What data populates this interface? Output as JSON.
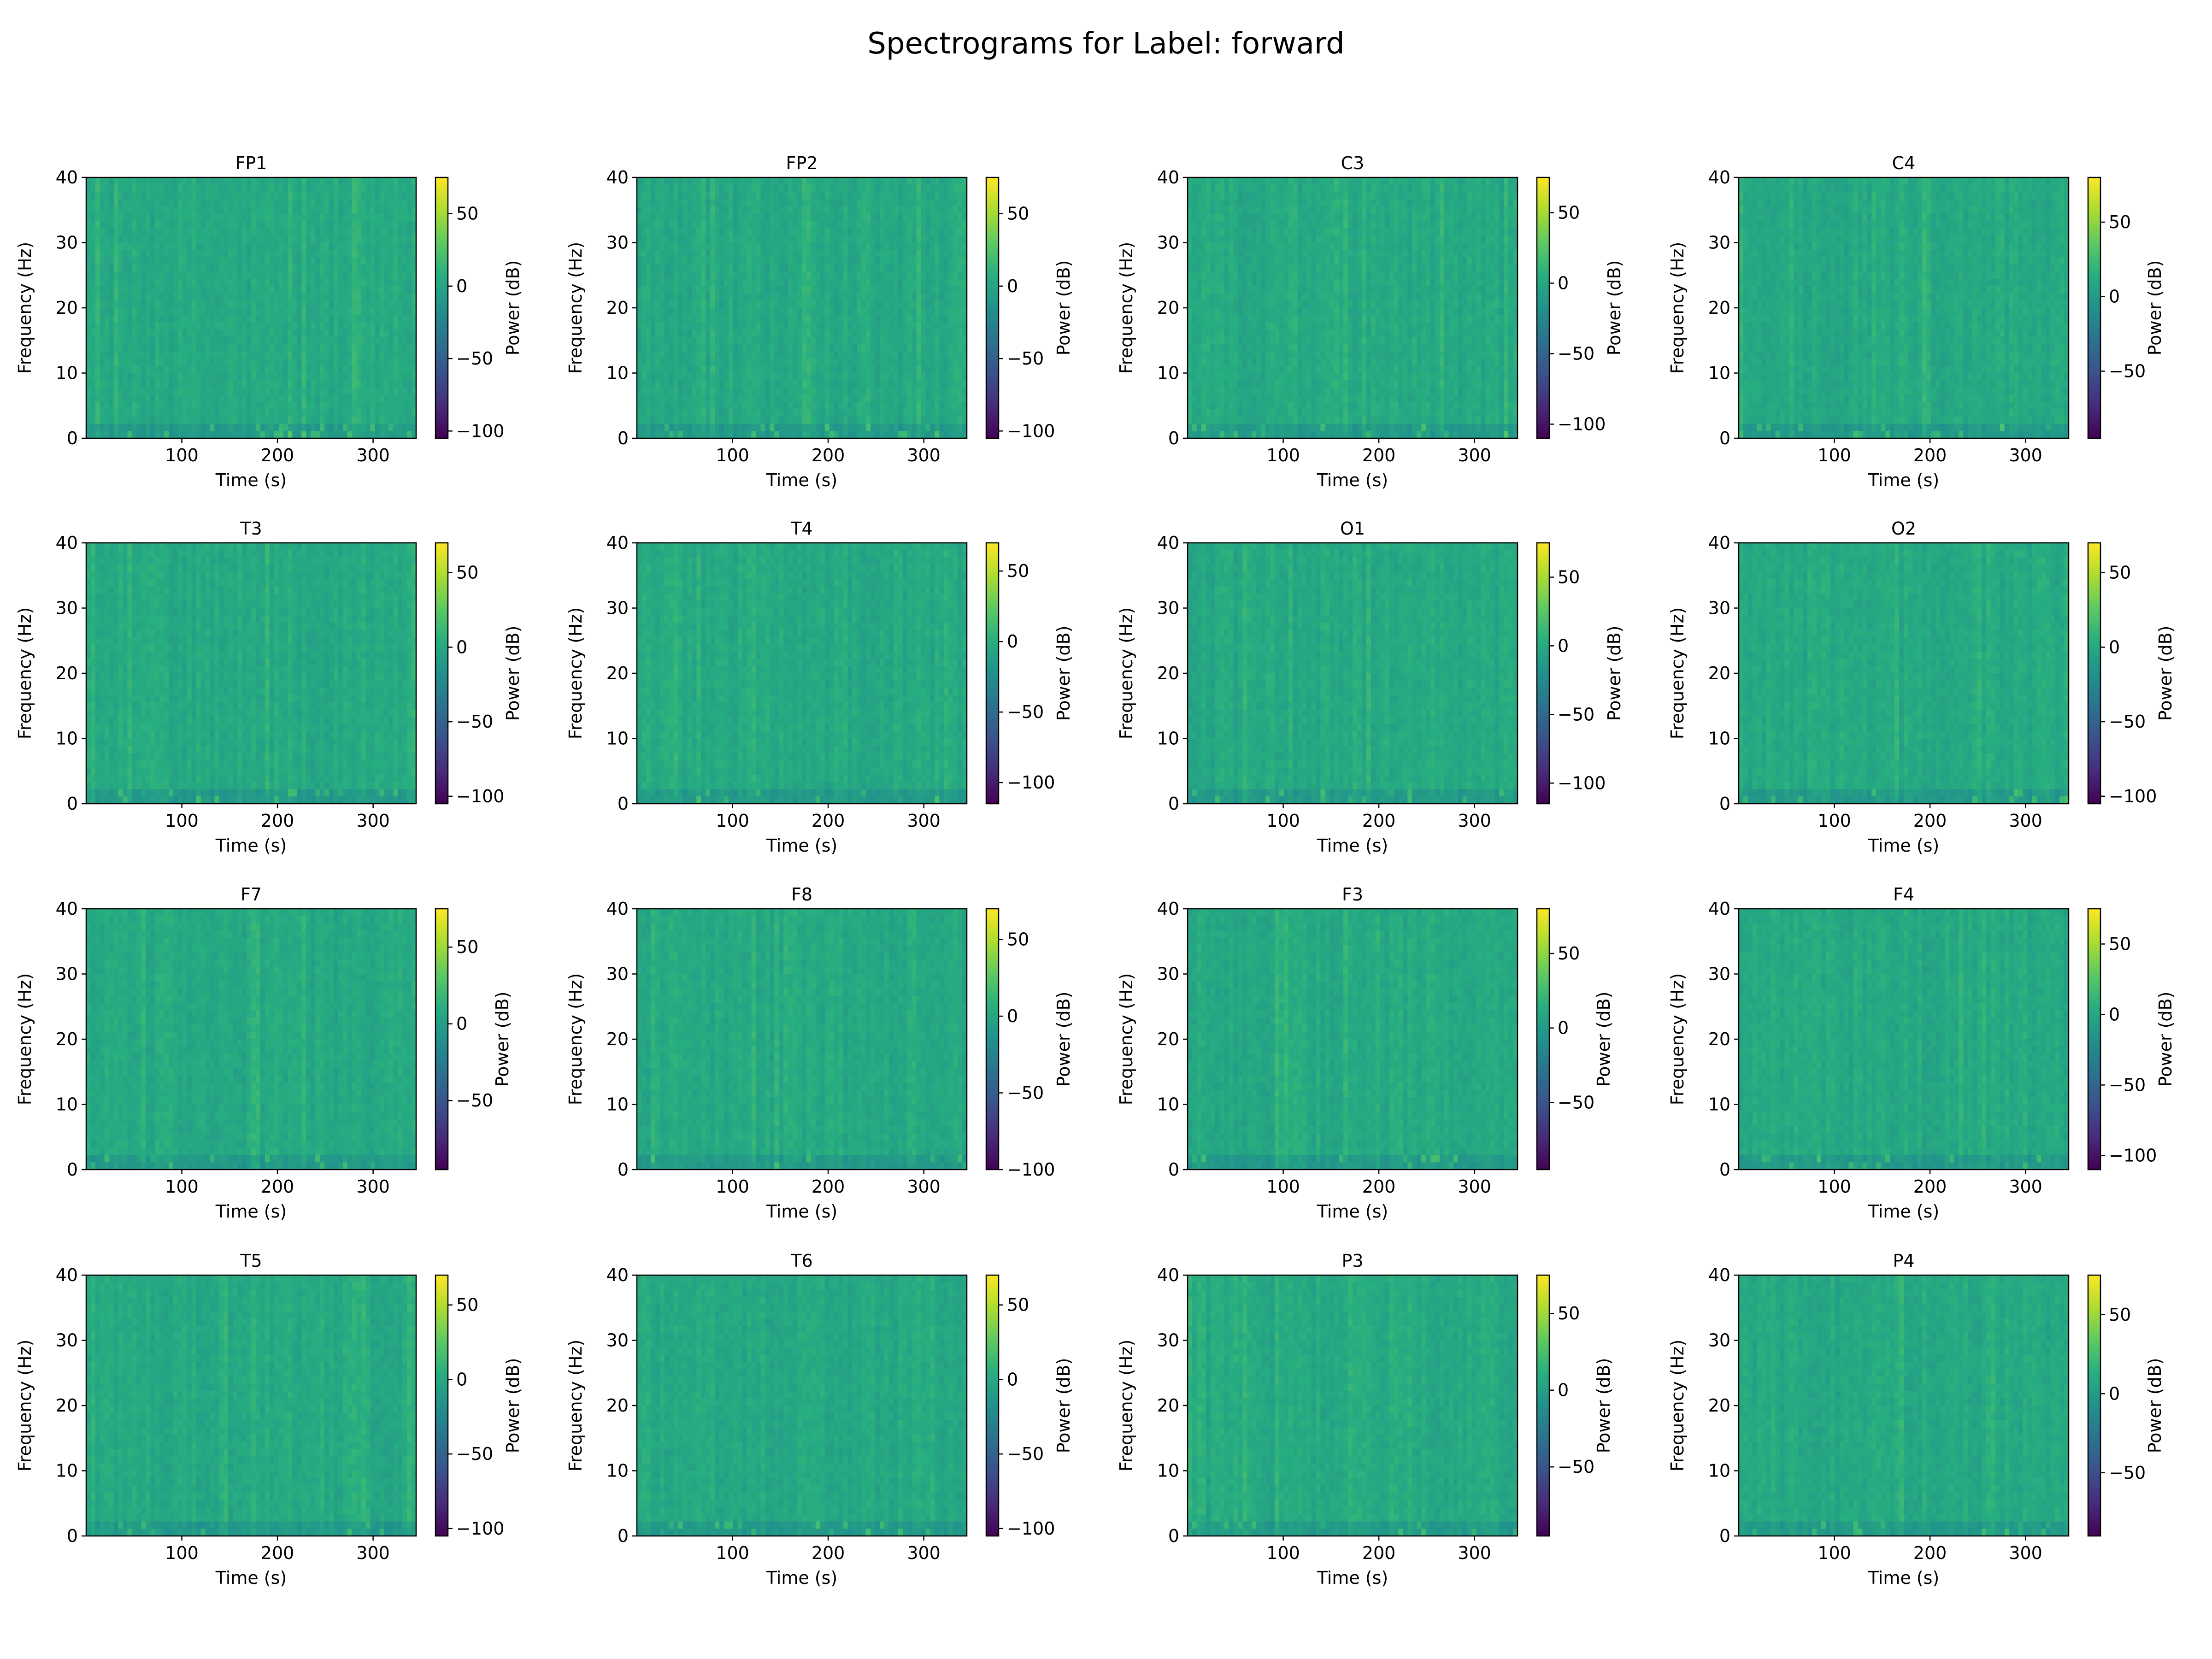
{
  "figure": {
    "title": "Spectrograms for Label: forward"
  },
  "chart_data": {
    "type": "heatmap",
    "colormap": "viridis",
    "colormap_stops": [
      "#440154",
      "#472c7a",
      "#3b528b",
      "#2c728e",
      "#21918c",
      "#28ae80",
      "#5ec962",
      "#addc30",
      "#fde725"
    ],
    "xlabel": "Time (s)",
    "ylabel": "Frequency (Hz)",
    "colorbar_label": "Power (dB)",
    "xlim": [
      0,
      345
    ],
    "ylim": [
      0,
      40
    ],
    "xticks": [
      100,
      200,
      300
    ],
    "yticks": [
      0,
      10,
      20,
      30,
      40
    ],
    "panels": [
      {
        "channel": "FP1",
        "cbar_range": [
          -105,
          75
        ],
        "cbar_ticks": [
          -100,
          -50,
          0,
          50
        ]
      },
      {
        "channel": "FP2",
        "cbar_range": [
          -105,
          75
        ],
        "cbar_ticks": [
          -100,
          -50,
          0,
          50
        ]
      },
      {
        "channel": "C3",
        "cbar_range": [
          -110,
          75
        ],
        "cbar_ticks": [
          -100,
          -50,
          0,
          50
        ]
      },
      {
        "channel": "C4",
        "cbar_range": [
          -95,
          80
        ],
        "cbar_ticks": [
          -50,
          0,
          50
        ]
      },
      {
        "channel": "T3",
        "cbar_range": [
          -105,
          70
        ],
        "cbar_ticks": [
          -100,
          -50,
          0,
          50
        ]
      },
      {
        "channel": "T4",
        "cbar_range": [
          -115,
          70
        ],
        "cbar_ticks": [
          -100,
          -50,
          0,
          50
        ]
      },
      {
        "channel": "O1",
        "cbar_range": [
          -115,
          75
        ],
        "cbar_ticks": [
          -100,
          -50,
          0,
          50
        ]
      },
      {
        "channel": "O2",
        "cbar_range": [
          -105,
          70
        ],
        "cbar_ticks": [
          -100,
          -50,
          0,
          50
        ]
      },
      {
        "channel": "F7",
        "cbar_range": [
          -95,
          75
        ],
        "cbar_ticks": [
          -50,
          0,
          50
        ]
      },
      {
        "channel": "F8",
        "cbar_range": [
          -100,
          70
        ],
        "cbar_ticks": [
          -100,
          -50,
          0,
          50
        ]
      },
      {
        "channel": "F3",
        "cbar_range": [
          -95,
          80
        ],
        "cbar_ticks": [
          -50,
          0,
          50
        ]
      },
      {
        "channel": "F4",
        "cbar_range": [
          -110,
          75
        ],
        "cbar_ticks": [
          -100,
          -50,
          0,
          50
        ]
      },
      {
        "channel": "T5",
        "cbar_range": [
          -105,
          70
        ],
        "cbar_ticks": [
          -100,
          -50,
          0,
          50
        ]
      },
      {
        "channel": "T6",
        "cbar_range": [
          -105,
          70
        ],
        "cbar_ticks": [
          -100,
          -50,
          0,
          50
        ]
      },
      {
        "channel": "P3",
        "cbar_range": [
          -95,
          75
        ],
        "cbar_ticks": [
          -50,
          0,
          50
        ]
      },
      {
        "channel": "P4",
        "cbar_range": [
          -90,
          75
        ],
        "cbar_ticks": [
          -50,
          0,
          50
        ]
      }
    ]
  }
}
